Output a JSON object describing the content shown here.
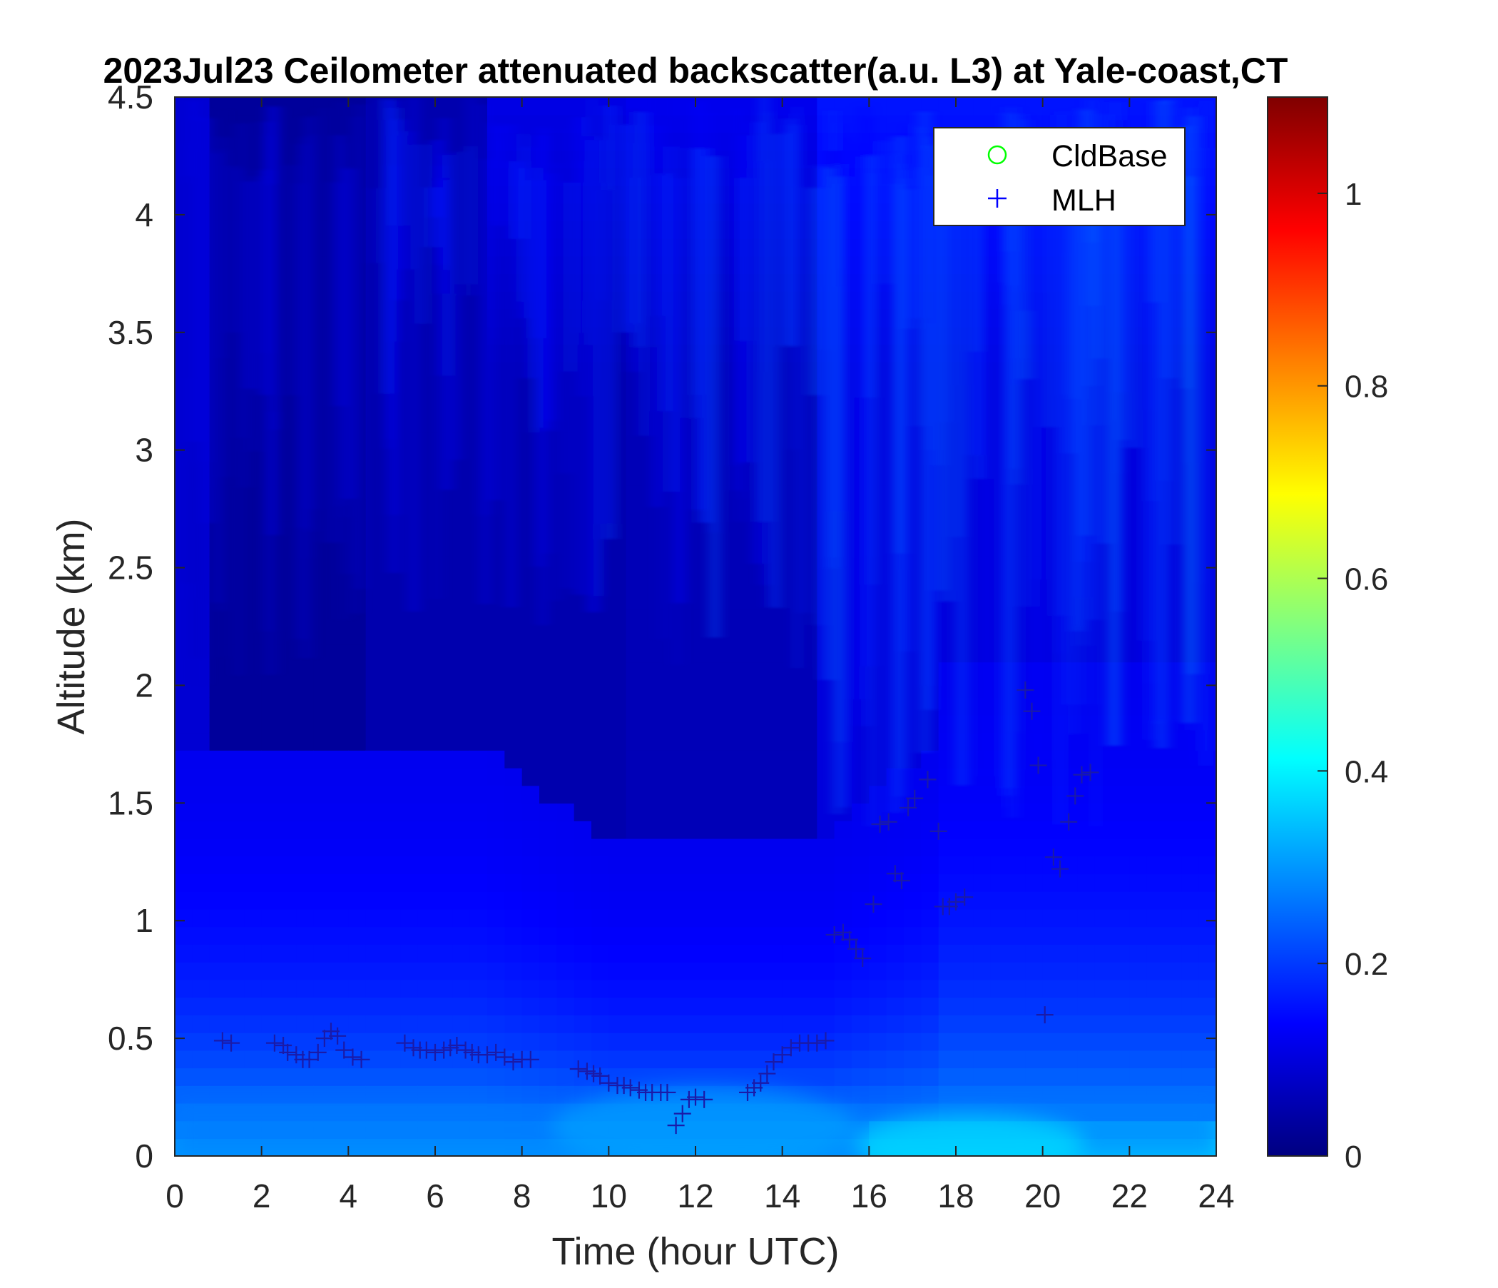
{
  "chart_data": {
    "type": "heatmap",
    "title": "2023Jul23 Ceilometer attenuated backscatter(a.u. L3) at Yale-coast,CT",
    "xlabel": "Time (hour UTC)",
    "ylabel": "Altitude (km)",
    "xlim": [
      0,
      24
    ],
    "ylim": [
      0,
      4.5
    ],
    "x_ticks": [
      0,
      2,
      4,
      6,
      8,
      10,
      12,
      14,
      16,
      18,
      20,
      22,
      24
    ],
    "x_tick_labels": [
      "0",
      "2",
      "4",
      "6",
      "8",
      "10",
      "12",
      "14",
      "16",
      "18",
      "20",
      "22",
      "24"
    ],
    "y_ticks": [
      0,
      0.5,
      1,
      1.5,
      2,
      2.5,
      3,
      3.5,
      4,
      4.5
    ],
    "y_tick_labels": [
      "0",
      "0.5",
      "1",
      "1.5",
      "2",
      "2.5",
      "3",
      "3.5",
      "4",
      "4.5"
    ],
    "colorbar": {
      "colormap": "jet",
      "range": [
        0,
        1.1
      ],
      "ticks": [
        0,
        0.2,
        0.4,
        0.6,
        0.8,
        1
      ],
      "tick_labels": [
        "0",
        "0.2",
        "0.4",
        "0.6",
        "0.8",
        "1"
      ]
    },
    "legend": {
      "placement": "top-right",
      "entries": [
        {
          "label": "CldBase",
          "marker": "circle",
          "color": "#00ff00"
        },
        {
          "label": "MLH",
          "marker": "plus",
          "color": "#0000ff"
        }
      ]
    },
    "series": [
      {
        "name": "MLH",
        "marker": "plus",
        "color": "#1a1aa8",
        "points": [
          [
            1.1,
            0.49
          ],
          [
            1.3,
            0.48
          ],
          [
            2.3,
            0.48
          ],
          [
            2.5,
            0.47
          ],
          [
            2.6,
            0.44
          ],
          [
            2.8,
            0.43
          ],
          [
            2.95,
            0.41
          ],
          [
            3.1,
            0.41
          ],
          [
            3.3,
            0.44
          ],
          [
            3.45,
            0.5
          ],
          [
            3.6,
            0.53
          ],
          [
            3.75,
            0.51
          ],
          [
            3.9,
            0.45
          ],
          [
            4.1,
            0.42
          ],
          [
            4.3,
            0.41
          ],
          [
            5.3,
            0.48
          ],
          [
            5.5,
            0.46
          ],
          [
            5.65,
            0.45
          ],
          [
            5.8,
            0.45
          ],
          [
            6.0,
            0.44
          ],
          [
            6.2,
            0.45
          ],
          [
            6.35,
            0.46
          ],
          [
            6.5,
            0.47
          ],
          [
            6.7,
            0.45
          ],
          [
            6.85,
            0.44
          ],
          [
            7.0,
            0.43
          ],
          [
            7.2,
            0.43
          ],
          [
            7.4,
            0.44
          ],
          [
            7.6,
            0.42
          ],
          [
            7.8,
            0.4
          ],
          [
            8.0,
            0.41
          ],
          [
            8.2,
            0.41
          ],
          [
            9.3,
            0.37
          ],
          [
            9.5,
            0.36
          ],
          [
            9.65,
            0.35
          ],
          [
            9.8,
            0.34
          ],
          [
            10.0,
            0.31
          ],
          [
            10.2,
            0.3
          ],
          [
            10.35,
            0.3
          ],
          [
            10.5,
            0.29
          ],
          [
            10.7,
            0.28
          ],
          [
            10.85,
            0.27
          ],
          [
            11.0,
            0.27
          ],
          [
            11.2,
            0.27
          ],
          [
            11.35,
            0.27
          ],
          [
            11.55,
            0.13
          ],
          [
            11.7,
            0.18
          ],
          [
            11.85,
            0.24
          ],
          [
            12.0,
            0.25
          ],
          [
            12.2,
            0.24
          ],
          [
            13.2,
            0.27
          ],
          [
            13.35,
            0.29
          ],
          [
            13.5,
            0.31
          ],
          [
            13.65,
            0.35
          ],
          [
            13.8,
            0.4
          ],
          [
            14.0,
            0.43
          ],
          [
            14.2,
            0.46
          ],
          [
            14.4,
            0.48
          ],
          [
            14.6,
            0.48
          ],
          [
            14.8,
            0.48
          ],
          [
            15.0,
            0.49
          ],
          [
            15.2,
            0.94
          ],
          [
            15.4,
            0.95
          ],
          [
            15.55,
            0.92
          ],
          [
            15.7,
            0.88
          ],
          [
            15.85,
            0.84
          ],
          [
            16.1,
            1.07
          ],
          [
            16.25,
            1.41
          ],
          [
            16.45,
            1.42
          ],
          [
            16.6,
            1.2
          ],
          [
            16.75,
            1.17
          ],
          [
            16.9,
            1.48
          ],
          [
            17.05,
            1.52
          ],
          [
            17.35,
            1.6
          ],
          [
            17.6,
            1.38
          ],
          [
            17.7,
            1.06
          ],
          [
            17.85,
            1.06
          ],
          [
            18.0,
            1.08
          ],
          [
            18.2,
            1.1
          ],
          [
            19.6,
            1.98
          ],
          [
            19.75,
            1.89
          ],
          [
            19.9,
            1.66
          ],
          [
            20.05,
            0.6
          ],
          [
            20.25,
            1.27
          ],
          [
            20.4,
            1.22
          ],
          [
            20.6,
            1.42
          ],
          [
            20.75,
            1.53
          ],
          [
            20.9,
            1.62
          ],
          [
            21.1,
            1.63
          ]
        ]
      },
      {
        "name": "CldBase",
        "marker": "circle",
        "color": "#00ff00",
        "points": []
      }
    ]
  }
}
